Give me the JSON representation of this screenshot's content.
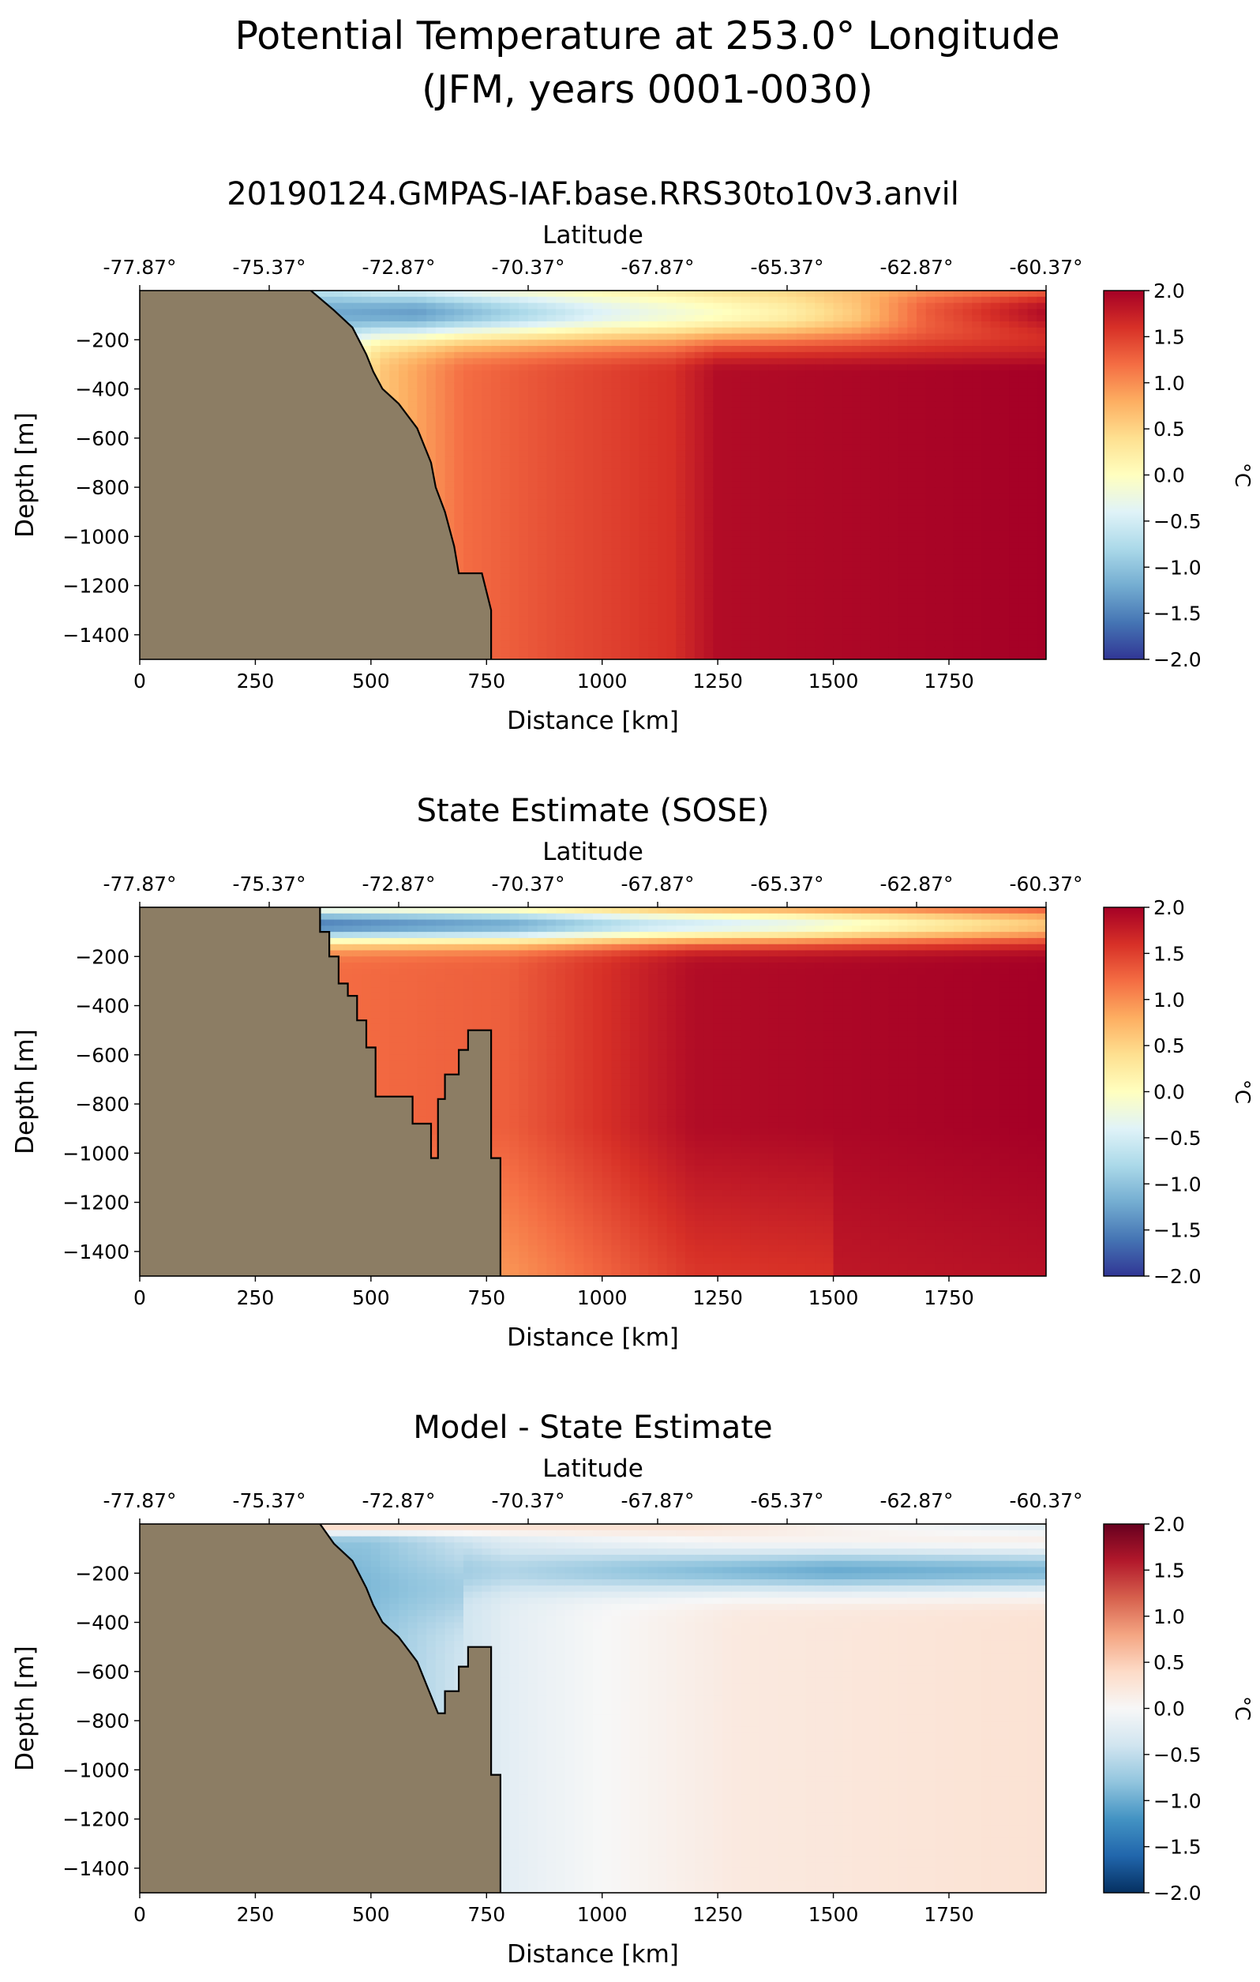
{
  "figure": {
    "title_line1": "Potential Temperature at 253.0° Longitude",
    "title_line2": "(JFM, years 0001-0030)"
  },
  "colors": {
    "land": "#8c7d64",
    "diverging": [
      "#053061",
      "#2166ac",
      "#4393c3",
      "#92c5de",
      "#d1e5f0",
      "#f7f7f7",
      "#fddbc7",
      "#f4a582",
      "#d6604d",
      "#b2182b",
      "#67001f"
    ],
    "redblue": [
      "#313695",
      "#4575b4",
      "#74add1",
      "#abd9e9",
      "#e0f3f8",
      "#ffffbf",
      "#fee090",
      "#fdae61",
      "#f46d43",
      "#d73027",
      "#a50026"
    ]
  },
  "chart_data": [
    {
      "type": "heatmap",
      "title": "20190124.GMPAS-IAF.base.RRS30to10v3.anvil",
      "xlabel": "Distance [km]",
      "ylabel": "Depth [m]",
      "top_axis_label": "Latitude",
      "colorbar_label": "°C",
      "colormap": "RdYlBu_r",
      "xlim": [
        0,
        1960
      ],
      "ylim": [
        -1500,
        0
      ],
      "clim": [
        -2.0,
        2.0
      ],
      "x_ticks": [
        0,
        250,
        500,
        750,
        1000,
        1250,
        1500,
        1750
      ],
      "x_tick_labels": [
        "0",
        "250",
        "500",
        "750",
        "1000",
        "1250",
        "1500",
        "1750"
      ],
      "y_ticks": [
        -200,
        -400,
        -600,
        -800,
        -1000,
        -1200,
        -1400
      ],
      "y_tick_labels": [
        "−200",
        "−400",
        "−600",
        "−800",
        "−1000",
        "−1200",
        "−1400"
      ],
      "lat_ticks": [
        0,
        280,
        560,
        840,
        1120,
        1400,
        1680,
        1960
      ],
      "lat_tick_labels": [
        "-77.87°",
        "-75.37°",
        "-72.87°",
        "-70.37°",
        "-67.87°",
        "-65.37°",
        "-62.87°",
        "-60.37°"
      ],
      "cbar_ticks": [
        2.0,
        1.5,
        1.0,
        0.5,
        0.0,
        -0.5,
        -1.0,
        -1.5,
        -2.0
      ],
      "cbar_tick_labels": [
        "2.0",
        "1.5",
        "1.0",
        "0.5",
        "0.0",
        "−0.5",
        "−1.0",
        "−1.5",
        "−2.0"
      ],
      "bathymetry": [
        [
          370,
          0
        ],
        [
          420,
          -80
        ],
        [
          460,
          -150
        ],
        [
          490,
          -260
        ],
        [
          505,
          -330
        ],
        [
          525,
          -400
        ],
        [
          560,
          -460
        ],
        [
          600,
          -560
        ],
        [
          630,
          -700
        ],
        [
          640,
          -800
        ],
        [
          660,
          -900
        ],
        [
          680,
          -1040
        ],
        [
          690,
          -1150
        ],
        [
          740,
          -1150
        ],
        [
          760,
          -1300
        ],
        [
          760,
          -1500
        ]
      ],
      "field": {
        "surface_layer": [
          [
            370,
            -1.2
          ],
          [
            600,
            -1.3
          ],
          [
            1000,
            -0.4
          ],
          [
            1400,
            0.2
          ],
          [
            1550,
            0.6
          ],
          [
            1700,
            1.3
          ],
          [
            1960,
            1.9
          ]
        ],
        "deep_profile": [
          [
            420,
            -0.3
          ],
          [
            520,
            0.6
          ],
          [
            700,
            1.2
          ],
          [
            900,
            1.4
          ],
          [
            1150,
            1.6
          ],
          [
            1250,
            1.9
          ],
          [
            1960,
            2.0
          ]
        ]
      }
    },
    {
      "type": "heatmap",
      "title": "State Estimate (SOSE)",
      "xlabel": "Distance [km]",
      "ylabel": "Depth [m]",
      "top_axis_label": "Latitude",
      "colorbar_label": "°C",
      "colormap": "RdYlBu_r",
      "xlim": [
        0,
        1960
      ],
      "ylim": [
        -1500,
        0
      ],
      "clim": [
        -2.0,
        2.0
      ],
      "x_ticks": [
        0,
        250,
        500,
        750,
        1000,
        1250,
        1500,
        1750
      ],
      "x_tick_labels": [
        "0",
        "250",
        "500",
        "750",
        "1000",
        "1250",
        "1500",
        "1750"
      ],
      "y_ticks": [
        -200,
        -400,
        -600,
        -800,
        -1000,
        -1200,
        -1400
      ],
      "y_tick_labels": [
        "−200",
        "−400",
        "−600",
        "−800",
        "−1000",
        "−1200",
        "−1400"
      ],
      "lat_ticks": [
        0,
        280,
        560,
        840,
        1120,
        1400,
        1680,
        1960
      ],
      "lat_tick_labels": [
        "-77.87°",
        "-75.37°",
        "-72.87°",
        "-70.37°",
        "-67.87°",
        "-65.37°",
        "-62.87°",
        "-60.37°"
      ],
      "cbar_ticks": [
        2.0,
        1.5,
        1.0,
        0.5,
        0.0,
        -0.5,
        -1.0,
        -1.5,
        -2.0
      ],
      "cbar_tick_labels": [
        "2.0",
        "1.5",
        "1.0",
        "0.5",
        "0.0",
        "−0.5",
        "−1.0",
        "−1.5",
        "−2.0"
      ],
      "bathymetry": [
        [
          390,
          0
        ],
        [
          390,
          -100
        ],
        [
          410,
          -100
        ],
        [
          410,
          -200
        ],
        [
          430,
          -200
        ],
        [
          430,
          -310
        ],
        [
          450,
          -310
        ],
        [
          450,
          -360
        ],
        [
          470,
          -360
        ],
        [
          470,
          -460
        ],
        [
          490,
          -460
        ],
        [
          490,
          -570
        ],
        [
          510,
          -570
        ],
        [
          510,
          -770
        ],
        [
          590,
          -770
        ],
        [
          590,
          -880
        ],
        [
          630,
          -880
        ],
        [
          630,
          -1020
        ],
        [
          645,
          -1020
        ],
        [
          645,
          -780
        ],
        [
          660,
          -780
        ],
        [
          660,
          -680
        ],
        [
          690,
          -680
        ],
        [
          690,
          -580
        ],
        [
          710,
          -580
        ],
        [
          710,
          -500
        ],
        [
          760,
          -500
        ],
        [
          760,
          -1020
        ],
        [
          780,
          -1020
        ],
        [
          780,
          -1500
        ]
      ],
      "field": {
        "surface_layer": [
          [
            390,
            -1.5
          ],
          [
            800,
            -1.2
          ],
          [
            1100,
            -0.6
          ],
          [
            1400,
            -0.3
          ],
          [
            1700,
            0.2
          ],
          [
            1960,
            0.6
          ]
        ],
        "deep_profile": [
          [
            400,
            1.2
          ],
          [
            800,
            1.3
          ],
          [
            1000,
            1.6
          ],
          [
            1200,
            1.9
          ],
          [
            1960,
            2.0
          ]
        ]
      }
    },
    {
      "type": "heatmap",
      "title": "Model - State Estimate",
      "xlabel": "Distance [km]",
      "ylabel": "Depth [m]",
      "top_axis_label": "Latitude",
      "colorbar_label": "°C",
      "colormap": "RdBu_r",
      "xlim": [
        0,
        1960
      ],
      "ylim": [
        -1500,
        0
      ],
      "clim": [
        -2.0,
        2.0
      ],
      "x_ticks": [
        0,
        250,
        500,
        750,
        1000,
        1250,
        1500,
        1750
      ],
      "x_tick_labels": [
        "0",
        "250",
        "500",
        "750",
        "1000",
        "1250",
        "1500",
        "1750"
      ],
      "y_ticks": [
        -200,
        -400,
        -600,
        -800,
        -1000,
        -1200,
        -1400
      ],
      "y_tick_labels": [
        "−200",
        "−400",
        "−600",
        "−800",
        "−1000",
        "−1200",
        "−1400"
      ],
      "lat_ticks": [
        0,
        280,
        560,
        840,
        1120,
        1400,
        1680,
        1960
      ],
      "lat_tick_labels": [
        "-77.87°",
        "-75.37°",
        "-72.87°",
        "-70.37°",
        "-67.87°",
        "-65.37°",
        "-62.87°",
        "-60.37°"
      ],
      "cbar_ticks": [
        2.0,
        1.5,
        1.0,
        0.5,
        0.0,
        -0.5,
        -1.0,
        -1.5,
        -2.0
      ],
      "cbar_tick_labels": [
        "2.0",
        "1.5",
        "1.0",
        "0.5",
        "0.0",
        "−0.5",
        "−1.0",
        "−1.5",
        "−2.0"
      ],
      "bathymetry": [
        [
          390,
          0
        ],
        [
          420,
          -80
        ],
        [
          460,
          -150
        ],
        [
          490,
          -260
        ],
        [
          505,
          -330
        ],
        [
          525,
          -400
        ],
        [
          560,
          -460
        ],
        [
          600,
          -560
        ],
        [
          630,
          -700
        ],
        [
          645,
          -770
        ],
        [
          660,
          -770
        ],
        [
          660,
          -680
        ],
        [
          690,
          -680
        ],
        [
          690,
          -580
        ],
        [
          710,
          -580
        ],
        [
          710,
          -500
        ],
        [
          760,
          -500
        ],
        [
          760,
          -1020
        ],
        [
          780,
          -1020
        ],
        [
          780,
          -1500
        ]
      ],
      "field": {
        "surface_layer": [
          [
            390,
            0.4
          ],
          [
            800,
            0.3
          ],
          [
            1200,
            0.3
          ],
          [
            1960,
            -0.2
          ]
        ],
        "subsurface_layer": [
          [
            390,
            -1.0
          ],
          [
            800,
            -0.6
          ],
          [
            1100,
            -0.8
          ],
          [
            1500,
            -1.0
          ],
          [
            1960,
            -0.9
          ]
        ],
        "deep_profile": [
          [
            500,
            -0.8
          ],
          [
            800,
            -0.2
          ],
          [
            1000,
            0.0
          ],
          [
            1300,
            0.2
          ],
          [
            1960,
            0.3
          ]
        ]
      }
    }
  ]
}
